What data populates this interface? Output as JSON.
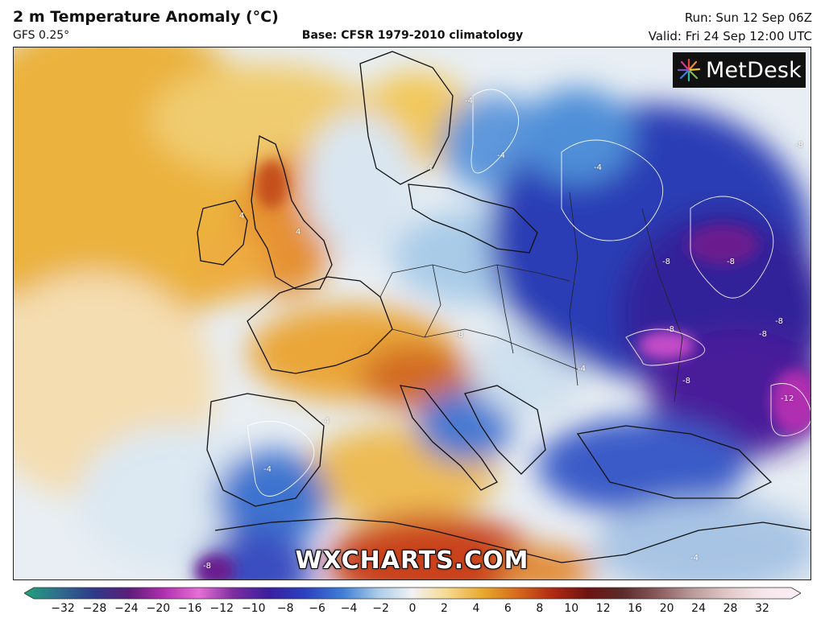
{
  "header": {
    "title": "2 m Temperature Anomaly (°C)",
    "model": "GFS 0.25°",
    "base": "Base: CFSR 1979-2010 climatology",
    "run": "Run: Sun 12 Sep 06Z",
    "valid": "Valid: Fri 24 Sep 12:00 UTC"
  },
  "logo": {
    "text": "MetDesk",
    "icon": "metdesk-starburst-icon"
  },
  "watermark": "WXCHARTS.COM",
  "contour_labels": [
    "-4",
    "-4",
    "-4",
    "-4",
    "-8",
    "-8",
    "-8",
    "-8",
    "-8",
    "-8",
    "-12",
    "-8",
    "-8",
    "4",
    "4",
    "-4",
    "-4",
    "-4",
    "-4",
    "-8"
  ],
  "colorbar": {
    "ticks": [
      "−32",
      "−28",
      "−24",
      "−20",
      "−16",
      "−12",
      "−10",
      "−8",
      "−6",
      "−4",
      "−2",
      "0",
      "2",
      "4",
      "6",
      "8",
      "10",
      "12",
      "16",
      "20",
      "24",
      "28",
      "32"
    ],
    "colors": {
      "min": "#1fa37a",
      "neg28": "#2f6d8f",
      "neg24": "#2e3a8a",
      "neg20": "#5d1d7a",
      "neg16": "#b02fb0",
      "neg12": "#e66fd6",
      "neg10": "#7c2ca0",
      "neg8": "#3a1f9e",
      "neg6": "#2b3fbf",
      "neg4": "#3f7ed6",
      "neg2": "#a9cbe8",
      "zero": "#f2f2f2",
      "pos2": "#f6d98f",
      "pos4": "#e9a92c",
      "pos6": "#d56a1d",
      "pos8": "#b22a14",
      "pos10": "#6e1410",
      "pos12": "#5a2a2a",
      "pos16": "#8a5a5a",
      "pos20": "#b99a9a",
      "pos24": "#e0c8c8",
      "pos28": "#f5e6ea",
      "max": "#fbeef5"
    }
  }
}
